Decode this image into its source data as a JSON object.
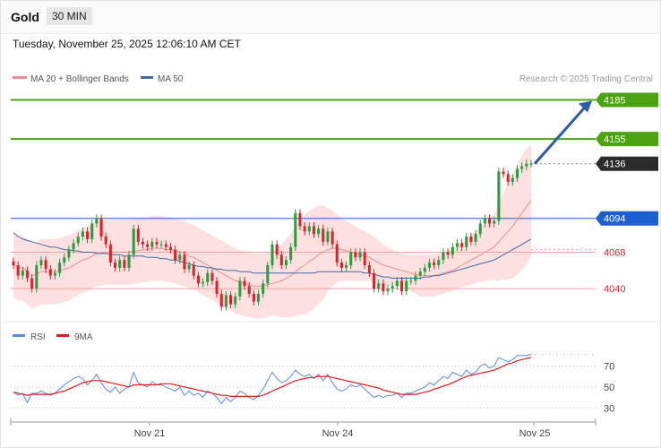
{
  "header": {
    "instrument": "Gold",
    "timeframe": "30 MIN",
    "datetime": "Tuesday, November 25, 2025 12:06:10 AM CET",
    "credit": "Research © 2025 Trading Central"
  },
  "colors": {
    "candle_up": "#2e9b43",
    "candle_down": "#d6262c",
    "bollinger_fill": "#fde1e1",
    "ma20": "#f08c8c",
    "ma50": "#3c6aa8",
    "resistance": "#4ca312",
    "pivot": "#1e5fcf",
    "support": "#f5a3a3",
    "last_price": "#2b2b2b",
    "arrow": "#2d5ca6",
    "rsi": "#5b8ae0",
    "rsi_ma": "#e01b1b"
  },
  "chart_data": [
    {
      "type": "line",
      "title": "",
      "legend": [
        {
          "name": "MA 20 + Bollinger Bands",
          "color": "#f08c8c"
        },
        {
          "name": "MA 50",
          "color": "#3c6aa8"
        }
      ],
      "legend_position": "top-left",
      "y_range": [
        4016,
        4195
      ],
      "x_labels": [
        "Nov 21",
        "Nov 24",
        "Nov 25"
      ],
      "levels": [
        {
          "value": 4185,
          "label": "4185",
          "kind": "resistance",
          "color": "#4ca312"
        },
        {
          "value": 4155,
          "label": "4155",
          "kind": "resistance",
          "color": "#4ca312"
        },
        {
          "value": 4136,
          "label": "4136",
          "kind": "last",
          "color": "#2b2b2b"
        },
        {
          "value": 4094,
          "label": "4094",
          "kind": "pivot",
          "color": "#1e5fcf"
        },
        {
          "value": 4068,
          "label": "4068",
          "kind": "support",
          "color": "#e02424"
        },
        {
          "value": 4040,
          "label": "4040",
          "kind": "support",
          "color": "#e02424"
        }
      ],
      "prices": [
        4058,
        4050,
        4054,
        4048,
        4040,
        4058,
        4062,
        4055,
        4050,
        4052,
        4060,
        4064,
        4070,
        4075,
        4080,
        4084,
        4078,
        4090,
        4094,
        4080,
        4074,
        4060,
        4056,
        4062,
        4056,
        4066,
        4086,
        4076,
        4074,
        4072,
        4076,
        4074,
        4074,
        4072,
        4070,
        4062,
        4066,
        4055,
        4058,
        4050,
        4044,
        4045,
        4052,
        4046,
        4036,
        4026,
        4035,
        4028,
        4034,
        4046,
        4042,
        4036,
        4030,
        4036,
        4044,
        4058,
        4074,
        4066,
        4058,
        4062,
        4072,
        4098,
        4088,
        4084,
        4088,
        4082,
        4086,
        4076,
        4084,
        4074,
        4060,
        4056,
        4058,
        4068,
        4064,
        4068,
        4058,
        4052,
        4040,
        4044,
        4038,
        4040,
        4042,
        4046,
        4038,
        4046,
        4046,
        4050,
        4053,
        4056,
        4060,
        4058,
        4062,
        4068,
        4066,
        4072,
        4075,
        4072,
        4080,
        4076,
        4082,
        4090,
        4094,
        4090,
        4092,
        4130,
        4128,
        4122,
        4125,
        4132,
        4134,
        4136,
        4136
      ],
      "ma20": [
        4058,
        4056,
        4056,
        4053,
        4050,
        4051,
        4053,
        4053,
        4053,
        4053,
        4054,
        4055,
        4056,
        4058,
        4060,
        4062,
        4063,
        4065,
        4067,
        4067,
        4068,
        4068,
        4068,
        4068,
        4068,
        4068,
        4069,
        4069,
        4070,
        4070,
        4071,
        4071,
        4071,
        4070,
        4070,
        4069,
        4068,
        4067,
        4065,
        4064,
        4062,
        4060,
        4058,
        4056,
        4054,
        4052,
        4050,
        4048,
        4046,
        4045,
        4044,
        4043,
        4042,
        4042,
        4042,
        4043,
        4044,
        4045,
        4046,
        4048,
        4050,
        4053,
        4056,
        4058,
        4061,
        4063,
        4066,
        4068,
        4070,
        4071,
        4071,
        4070,
        4069,
        4068,
        4067,
        4066,
        4065,
        4064,
        4062,
        4060,
        4058,
        4057,
        4056,
        4055,
        4054,
        4053,
        4052,
        4051,
        4050,
        4050,
        4050,
        4050,
        4051,
        4052,
        4053,
        4054,
        4056,
        4058,
        4060,
        4062,
        4064,
        4066,
        4068,
        4070,
        4072,
        4076,
        4080,
        4084,
        4088,
        4093,
        4098,
        4103,
        4108
      ],
      "bb_upper": [
        4083,
        4081,
        4081,
        4078,
        4075,
        4076,
        4078,
        4078,
        4078,
        4078,
        4079,
        4080,
        4081,
        4083,
        4085,
        4087,
        4088,
        4090,
        4092,
        4092,
        4093,
        4093,
        4093,
        4093,
        4093,
        4093,
        4094,
        4094,
        4095,
        4095,
        4096,
        4096,
        4096,
        4095,
        4095,
        4094,
        4093,
        4092,
        4090,
        4089,
        4087,
        4085,
        4083,
        4081,
        4079,
        4077,
        4075,
        4073,
        4071,
        4070,
        4069,
        4068,
        4067,
        4067,
        4067,
        4068,
        4069,
        4071,
        4074,
        4078,
        4082,
        4087,
        4092,
        4096,
        4100,
        4102,
        4104,
        4104,
        4102,
        4100,
        4097,
        4094,
        4092,
        4090,
        4088,
        4086,
        4084,
        4082,
        4080,
        4077,
        4074,
        4072,
        4070,
        4068,
        4067,
        4066,
        4066,
        4066,
        4066,
        4066,
        4066,
        4066,
        4067,
        4068,
        4069,
        4070,
        4072,
        4075,
        4078,
        4081,
        4084,
        4087,
        4090,
        4094,
        4097,
        4106,
        4113,
        4121,
        4128,
        4135,
        4142,
        4148,
        4150
      ],
      "bb_lower": [
        4033,
        4031,
        4031,
        4028,
        4025,
        4026,
        4028,
        4028,
        4028,
        4028,
        4029,
        4030,
        4031,
        4033,
        4035,
        4037,
        4038,
        4040,
        4042,
        4042,
        4043,
        4043,
        4043,
        4043,
        4043,
        4043,
        4044,
        4044,
        4045,
        4045,
        4046,
        4046,
        4046,
        4045,
        4045,
        4044,
        4043,
        4042,
        4040,
        4039,
        4037,
        4035,
        4033,
        4031,
        4029,
        4027,
        4025,
        4023,
        4021,
        4020,
        4019,
        4018,
        4017,
        4017,
        4017,
        4018,
        4019,
        4019,
        4018,
        4018,
        4018,
        4019,
        4020,
        4020,
        4022,
        4024,
        4028,
        4032,
        4038,
        4042,
        4045,
        4046,
        4046,
        4046,
        4046,
        4046,
        4046,
        4046,
        4044,
        4043,
        4042,
        4042,
        4042,
        4042,
        4041,
        4040,
        4038,
        4036,
        4034,
        4034,
        4034,
        4034,
        4035,
        4036,
        4037,
        4038,
        4040,
        4041,
        4042,
        4043,
        4044,
        4045,
        4046,
        4046,
        4047,
        4046,
        4047,
        4047,
        4048,
        4051,
        4054,
        4058,
        4066
      ],
      "ma50": [
        4083,
        4080,
        4078,
        4077,
        4076,
        4075,
        4074,
        4073,
        4072,
        4072,
        4071,
        4070,
        4070,
        4069,
        4069,
        4068,
        4068,
        4068,
        4067,
        4067,
        4067,
        4066,
        4066,
        4066,
        4065,
        4065,
        4065,
        4065,
        4065,
        4064,
        4064,
        4064,
        4063,
        4063,
        4062,
        4062,
        4061,
        4060,
        4059,
        4058,
        4057,
        4057,
        4056,
        4056,
        4055,
        4055,
        4054,
        4054,
        4054,
        4053,
        4053,
        4053,
        4052,
        4052,
        4052,
        4052,
        4052,
        4052,
        4052,
        4052,
        4052,
        4052,
        4052,
        4052,
        4052,
        4052,
        4053,
        4053,
        4053,
        4053,
        4053,
        4053,
        4053,
        4053,
        4053,
        4053,
        4052,
        4052,
        4051,
        4050,
        4049,
        4049,
        4048,
        4048,
        4048,
        4048,
        4048,
        4048,
        4048,
        4049,
        4049,
        4050,
        4050,
        4051,
        4052,
        4053,
        4054,
        4055,
        4056,
        4057,
        4058,
        4059,
        4060,
        4061,
        4062,
        4064,
        4066,
        4068,
        4070,
        4072,
        4074,
        4076,
        4078
      ]
    },
    {
      "type": "line",
      "title": "",
      "legend": [
        {
          "name": "RSI",
          "color": "#5b8ae0"
        },
        {
          "name": "9MA",
          "color": "#e01b1b"
        }
      ],
      "legend_position": "top-left",
      "y_range": [
        20,
        90
      ],
      "y_ticks": [
        30,
        50,
        70
      ],
      "rsi": [
        45,
        42,
        44,
        35,
        44,
        44,
        46,
        44,
        42,
        44,
        48,
        52,
        55,
        58,
        60,
        58,
        52,
        56,
        62,
        54,
        48,
        45,
        50,
        44,
        48,
        50,
        64,
        54,
        52,
        50,
        55,
        52,
        52,
        50,
        48,
        46,
        50,
        42,
        46,
        42,
        44,
        40,
        46,
        44,
        40,
        34,
        40,
        36,
        40,
        46,
        44,
        40,
        38,
        42,
        48,
        56,
        64,
        58,
        54,
        56,
        60,
        66,
        62,
        60,
        62,
        58,
        62,
        56,
        62,
        54,
        48,
        46,
        48,
        52,
        50,
        52,
        48,
        44,
        40,
        42,
        40,
        42,
        42,
        44,
        40,
        44,
        44,
        46,
        48,
        50,
        54,
        52,
        56,
        60,
        58,
        64,
        62,
        60,
        66,
        62,
        64,
        70,
        72,
        68,
        70,
        78,
        76,
        74,
        76,
        80,
        80,
        80,
        81
      ],
      "rsi_ma": [
        45,
        44,
        43,
        42,
        43,
        43,
        43,
        43,
        43,
        44,
        45,
        46,
        48,
        50,
        52,
        54,
        55,
        56,
        56,
        56,
        55,
        54,
        53,
        52,
        51,
        50,
        52,
        52,
        52,
        52,
        52,
        52,
        53,
        53,
        53,
        52,
        51,
        50,
        49,
        48,
        47,
        46,
        45,
        44,
        43,
        42,
        42,
        41,
        41,
        41,
        41,
        41,
        41,
        41,
        42,
        44,
        46,
        48,
        50,
        52,
        54,
        56,
        57,
        58,
        59,
        59,
        60,
        60,
        60,
        59,
        58,
        57,
        56,
        55,
        54,
        53,
        52,
        51,
        50,
        49,
        47,
        46,
        45,
        44,
        43,
        43,
        43,
        43,
        44,
        45,
        46,
        48,
        49,
        51,
        52,
        54,
        56,
        58,
        60,
        61,
        62,
        63,
        64,
        65,
        66,
        68,
        70,
        72,
        73,
        75,
        76,
        77,
        78
      ]
    }
  ]
}
